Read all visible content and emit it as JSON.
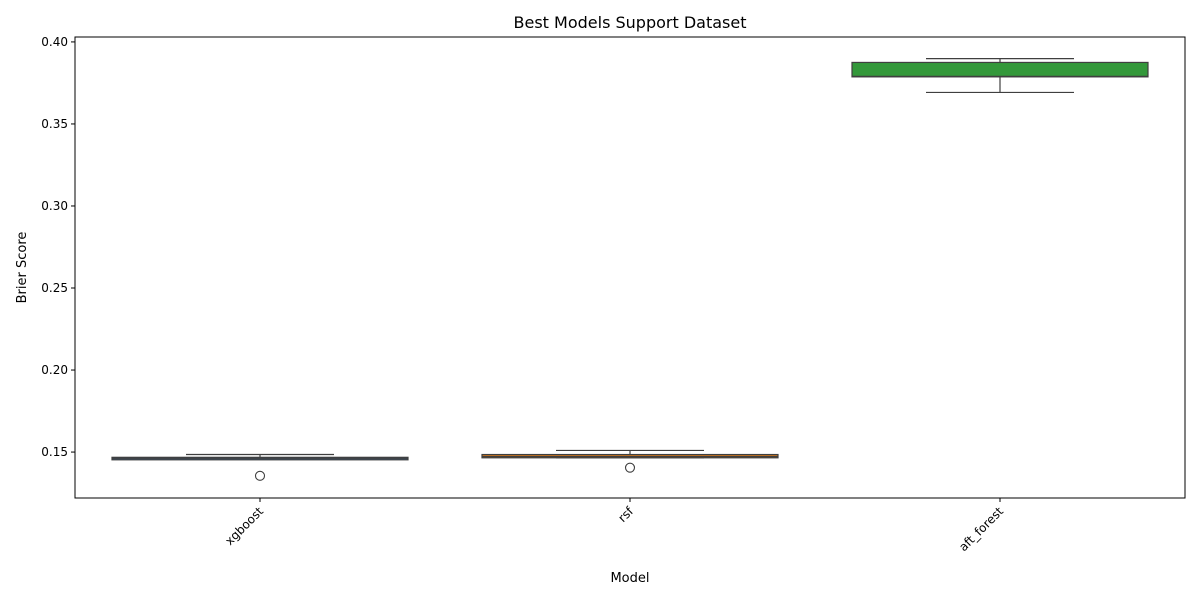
{
  "chart_data": {
    "type": "box",
    "title": "Best Models Support Dataset",
    "xlabel": "Model",
    "ylabel": "Brier Score",
    "categories": [
      "xgboost",
      "rsf",
      "aft_forest"
    ],
    "ylim": [
      0.122,
      0.403
    ],
    "yticks": [
      0.15,
      0.2,
      0.25,
      0.3,
      0.35,
      0.4
    ],
    "ytick_labels": [
      "0.15",
      "0.20",
      "0.25",
      "0.30",
      "0.35",
      "0.40"
    ],
    "xtick_rotation": 45,
    "grid": false,
    "boxes": [
      {
        "category": "xgboost",
        "color": "#3a5f86",
        "whisker_low": 0.1455,
        "q1": 0.1455,
        "median": 0.1462,
        "q3": 0.1468,
        "whisker_high": 0.1485,
        "outliers": [
          0.1355
        ]
      },
      {
        "category": "rsf",
        "color": "#c8731f",
        "whisker_low": 0.1465,
        "q1": 0.1465,
        "median": 0.1472,
        "q3": 0.1485,
        "whisker_high": 0.151,
        "outliers": [
          0.1405
        ]
      },
      {
        "category": "aft_forest",
        "color": "#33983a",
        "whisker_low": 0.3692,
        "q1": 0.3787,
        "median": 0.379,
        "q3": 0.3875,
        "whisker_high": 0.3898,
        "outliers": []
      }
    ]
  }
}
